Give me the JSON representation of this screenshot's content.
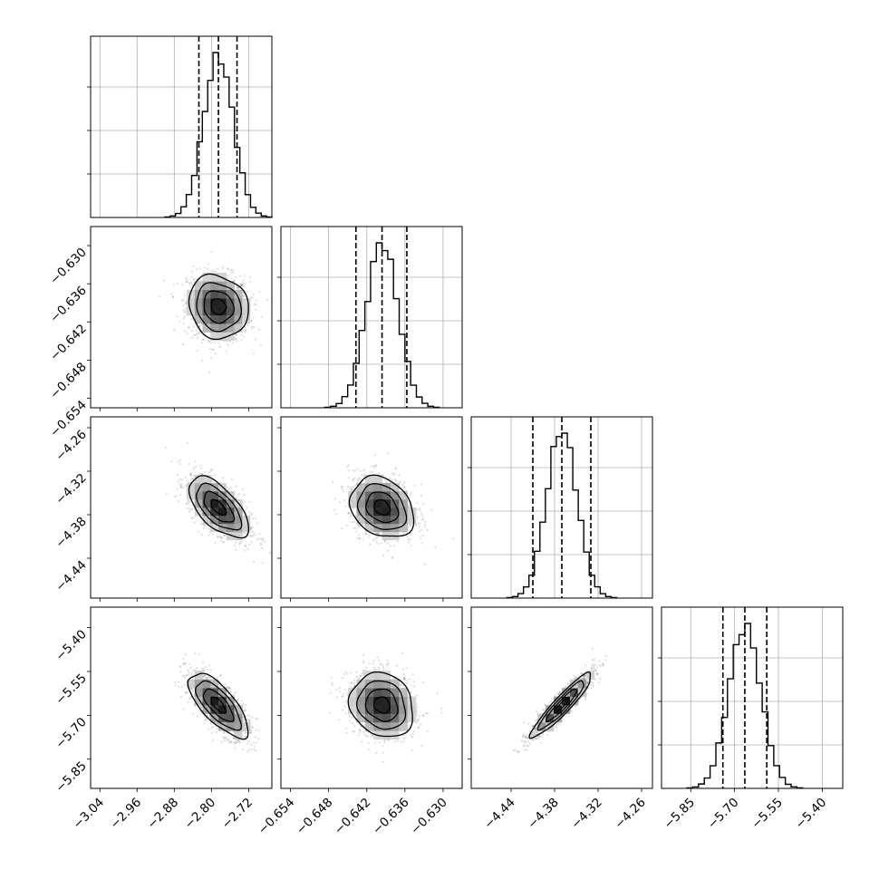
{
  "chart_data": {
    "type": "corner",
    "title": "",
    "description_of_dimensions": "four model parameters, unlabeled",
    "params": [
      {
        "index": 0,
        "label": "",
        "range": [
          -3.06,
          -2.67
        ],
        "ticks": [
          -3.04,
          -2.96,
          -2.88,
          -2.8,
          -2.72
        ],
        "tick_labels": [
          "−3.04",
          "−2.96",
          "−2.88",
          "−2.80",
          "−2.72"
        ],
        "mean": -2.785,
        "sigma": 0.032,
        "quantiles": [
          -2.827,
          -2.785,
          -2.745
        ]
      },
      {
        "index": 1,
        "label": "",
        "range": [
          -0.6555,
          -0.627
        ],
        "ticks": [
          -0.654,
          -0.648,
          -0.642,
          -0.636,
          -0.63
        ],
        "tick_labels": [
          "−0.654",
          "−0.648",
          "−0.642",
          "−0.636",
          "−0.630"
        ],
        "mean": -0.6396,
        "sigma": 0.0025,
        "quantiles": [
          -0.6437,
          -0.6396,
          -0.6357
        ]
      },
      {
        "index": 2,
        "label": "",
        "range": [
          -4.495,
          -4.245
        ],
        "ticks": [
          -4.44,
          -4.38,
          -4.32,
          -4.26
        ],
        "tick_labels": [
          "−4.44",
          "−4.38",
          "−4.32",
          "−4.26"
        ],
        "mean": -4.37,
        "sigma": 0.021,
        "quantiles": [
          -4.41,
          -4.37,
          -4.33
        ]
      },
      {
        "index": 3,
        "label": "",
        "range": [
          -5.95,
          -5.33
        ],
        "ticks": [
          -5.85,
          -5.7,
          -5.55,
          -5.4
        ],
        "tick_labels": [
          "−5.85",
          "−5.70",
          "−5.55",
          "−5.40"
        ],
        "mean": -5.665,
        "sigma": 0.055,
        "quantiles": [
          -5.74,
          -5.665,
          -5.59
        ]
      }
    ],
    "correlations": [
      {
        "pair": [
          0,
          1
        ],
        "rho": -0.12
      },
      {
        "pair": [
          0,
          2
        ],
        "rho": -0.62
      },
      {
        "pair": [
          0,
          3
        ],
        "rho": -0.72
      },
      {
        "pair": [
          1,
          2
        ],
        "rho": -0.25
      },
      {
        "pair": [
          1,
          3
        ],
        "rho": -0.15
      },
      {
        "pair": [
          2,
          3
        ],
        "rho": 0.93
      }
    ],
    "histogram_bins": 20,
    "quantile_lines": [
      0.16,
      0.5,
      0.84
    ],
    "contour_levels_sigma": [
      0.5,
      1.0,
      1.5,
      2.0
    ],
    "grid": true,
    "legend": "none"
  }
}
